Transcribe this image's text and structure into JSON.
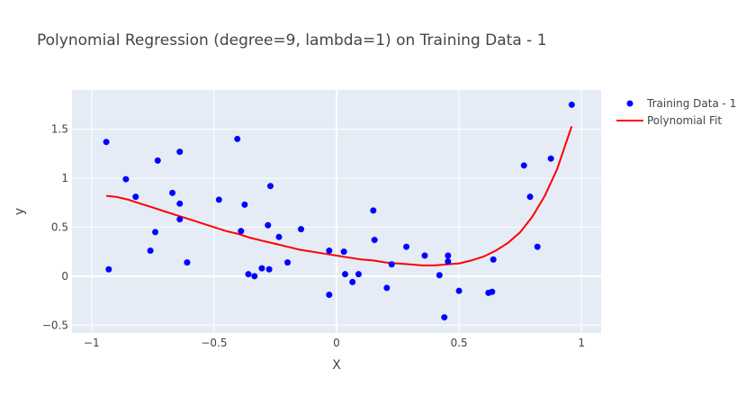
{
  "chart_data": {
    "type": "scatter",
    "title": "Polynomial Regression (degree=9, lambda=1) on Training Data - 1",
    "xlabel": "X",
    "ylabel": "y",
    "xlim": [
      -1.08,
      1.08
    ],
    "ylim": [
      -0.58,
      1.9
    ],
    "x_ticks": [
      -1,
      -0.5,
      0,
      0.5,
      1
    ],
    "x_tick_labels": [
      "−1",
      "−0.5",
      "0",
      "0.5",
      "1"
    ],
    "y_ticks": [
      -0.5,
      0,
      0.5,
      1,
      1.5
    ],
    "y_tick_labels": [
      "−0.5",
      "0",
      "0.5",
      "1",
      "1.5"
    ],
    "grid": true,
    "legend_position": "top-right",
    "series": [
      {
        "name": "Training Data - 1",
        "kind": "markers",
        "color": "#0000ff",
        "points": [
          [
            -0.94,
            1.37
          ],
          [
            -0.93,
            0.07
          ],
          [
            -0.86,
            0.99
          ],
          [
            -0.82,
            0.81
          ],
          [
            -0.76,
            0.26
          ],
          [
            -0.74,
            0.45
          ],
          [
            -0.73,
            1.18
          ],
          [
            -0.67,
            0.85
          ],
          [
            -0.64,
            1.27
          ],
          [
            -0.64,
            0.74
          ],
          [
            -0.64,
            0.58
          ],
          [
            -0.61,
            0.14
          ],
          [
            -0.48,
            0.78
          ],
          [
            -0.405,
            1.4
          ],
          [
            -0.39,
            0.46
          ],
          [
            -0.375,
            0.73
          ],
          [
            -0.36,
            0.02
          ],
          [
            -0.335,
            0.0
          ],
          [
            -0.305,
            0.08
          ],
          [
            -0.28,
            0.52
          ],
          [
            -0.275,
            0.07
          ],
          [
            -0.27,
            0.92
          ],
          [
            -0.235,
            0.4
          ],
          [
            -0.2,
            0.14
          ],
          [
            -0.145,
            0.48
          ],
          [
            -0.03,
            -0.19
          ],
          [
            -0.03,
            0.26
          ],
          [
            0.03,
            0.25
          ],
          [
            0.035,
            0.02
          ],
          [
            0.065,
            -0.06
          ],
          [
            0.09,
            0.02
          ],
          [
            0.15,
            0.67
          ],
          [
            0.155,
            0.37
          ],
          [
            0.205,
            -0.12
          ],
          [
            0.225,
            0.12
          ],
          [
            0.285,
            0.3
          ],
          [
            0.36,
            0.21
          ],
          [
            0.42,
            0.01
          ],
          [
            0.44,
            -0.42
          ],
          [
            0.455,
            0.21
          ],
          [
            0.455,
            0.15
          ],
          [
            0.5,
            -0.15
          ],
          [
            0.62,
            -0.17
          ],
          [
            0.635,
            -0.16
          ],
          [
            0.64,
            0.17
          ],
          [
            0.765,
            1.13
          ],
          [
            0.79,
            0.81
          ],
          [
            0.82,
            0.3
          ],
          [
            0.875,
            1.2
          ],
          [
            0.96,
            1.75
          ]
        ]
      },
      {
        "name": "Polynomial Fit",
        "kind": "line",
        "color": "#ff0000",
        "points": [
          [
            -0.94,
            0.82
          ],
          [
            -0.9,
            0.81
          ],
          [
            -0.85,
            0.78
          ],
          [
            -0.8,
            0.74
          ],
          [
            -0.75,
            0.7
          ],
          [
            -0.7,
            0.66
          ],
          [
            -0.65,
            0.62
          ],
          [
            -0.6,
            0.58
          ],
          [
            -0.55,
            0.54
          ],
          [
            -0.5,
            0.5
          ],
          [
            -0.45,
            0.46
          ],
          [
            -0.4,
            0.43
          ],
          [
            -0.35,
            0.39
          ],
          [
            -0.3,
            0.36
          ],
          [
            -0.25,
            0.33
          ],
          [
            -0.2,
            0.3
          ],
          [
            -0.15,
            0.27
          ],
          [
            -0.1,
            0.25
          ],
          [
            -0.05,
            0.23
          ],
          [
            0.0,
            0.21
          ],
          [
            0.05,
            0.19
          ],
          [
            0.1,
            0.17
          ],
          [
            0.15,
            0.16
          ],
          [
            0.2,
            0.14
          ],
          [
            0.25,
            0.13
          ],
          [
            0.3,
            0.12
          ],
          [
            0.35,
            0.11
          ],
          [
            0.4,
            0.11
          ],
          [
            0.45,
            0.12
          ],
          [
            0.5,
            0.13
          ],
          [
            0.55,
            0.16
          ],
          [
            0.6,
            0.2
          ],
          [
            0.65,
            0.26
          ],
          [
            0.7,
            0.34
          ],
          [
            0.75,
            0.45
          ],
          [
            0.8,
            0.61
          ],
          [
            0.85,
            0.82
          ],
          [
            0.9,
            1.09
          ],
          [
            0.96,
            1.53
          ]
        ]
      }
    ]
  }
}
